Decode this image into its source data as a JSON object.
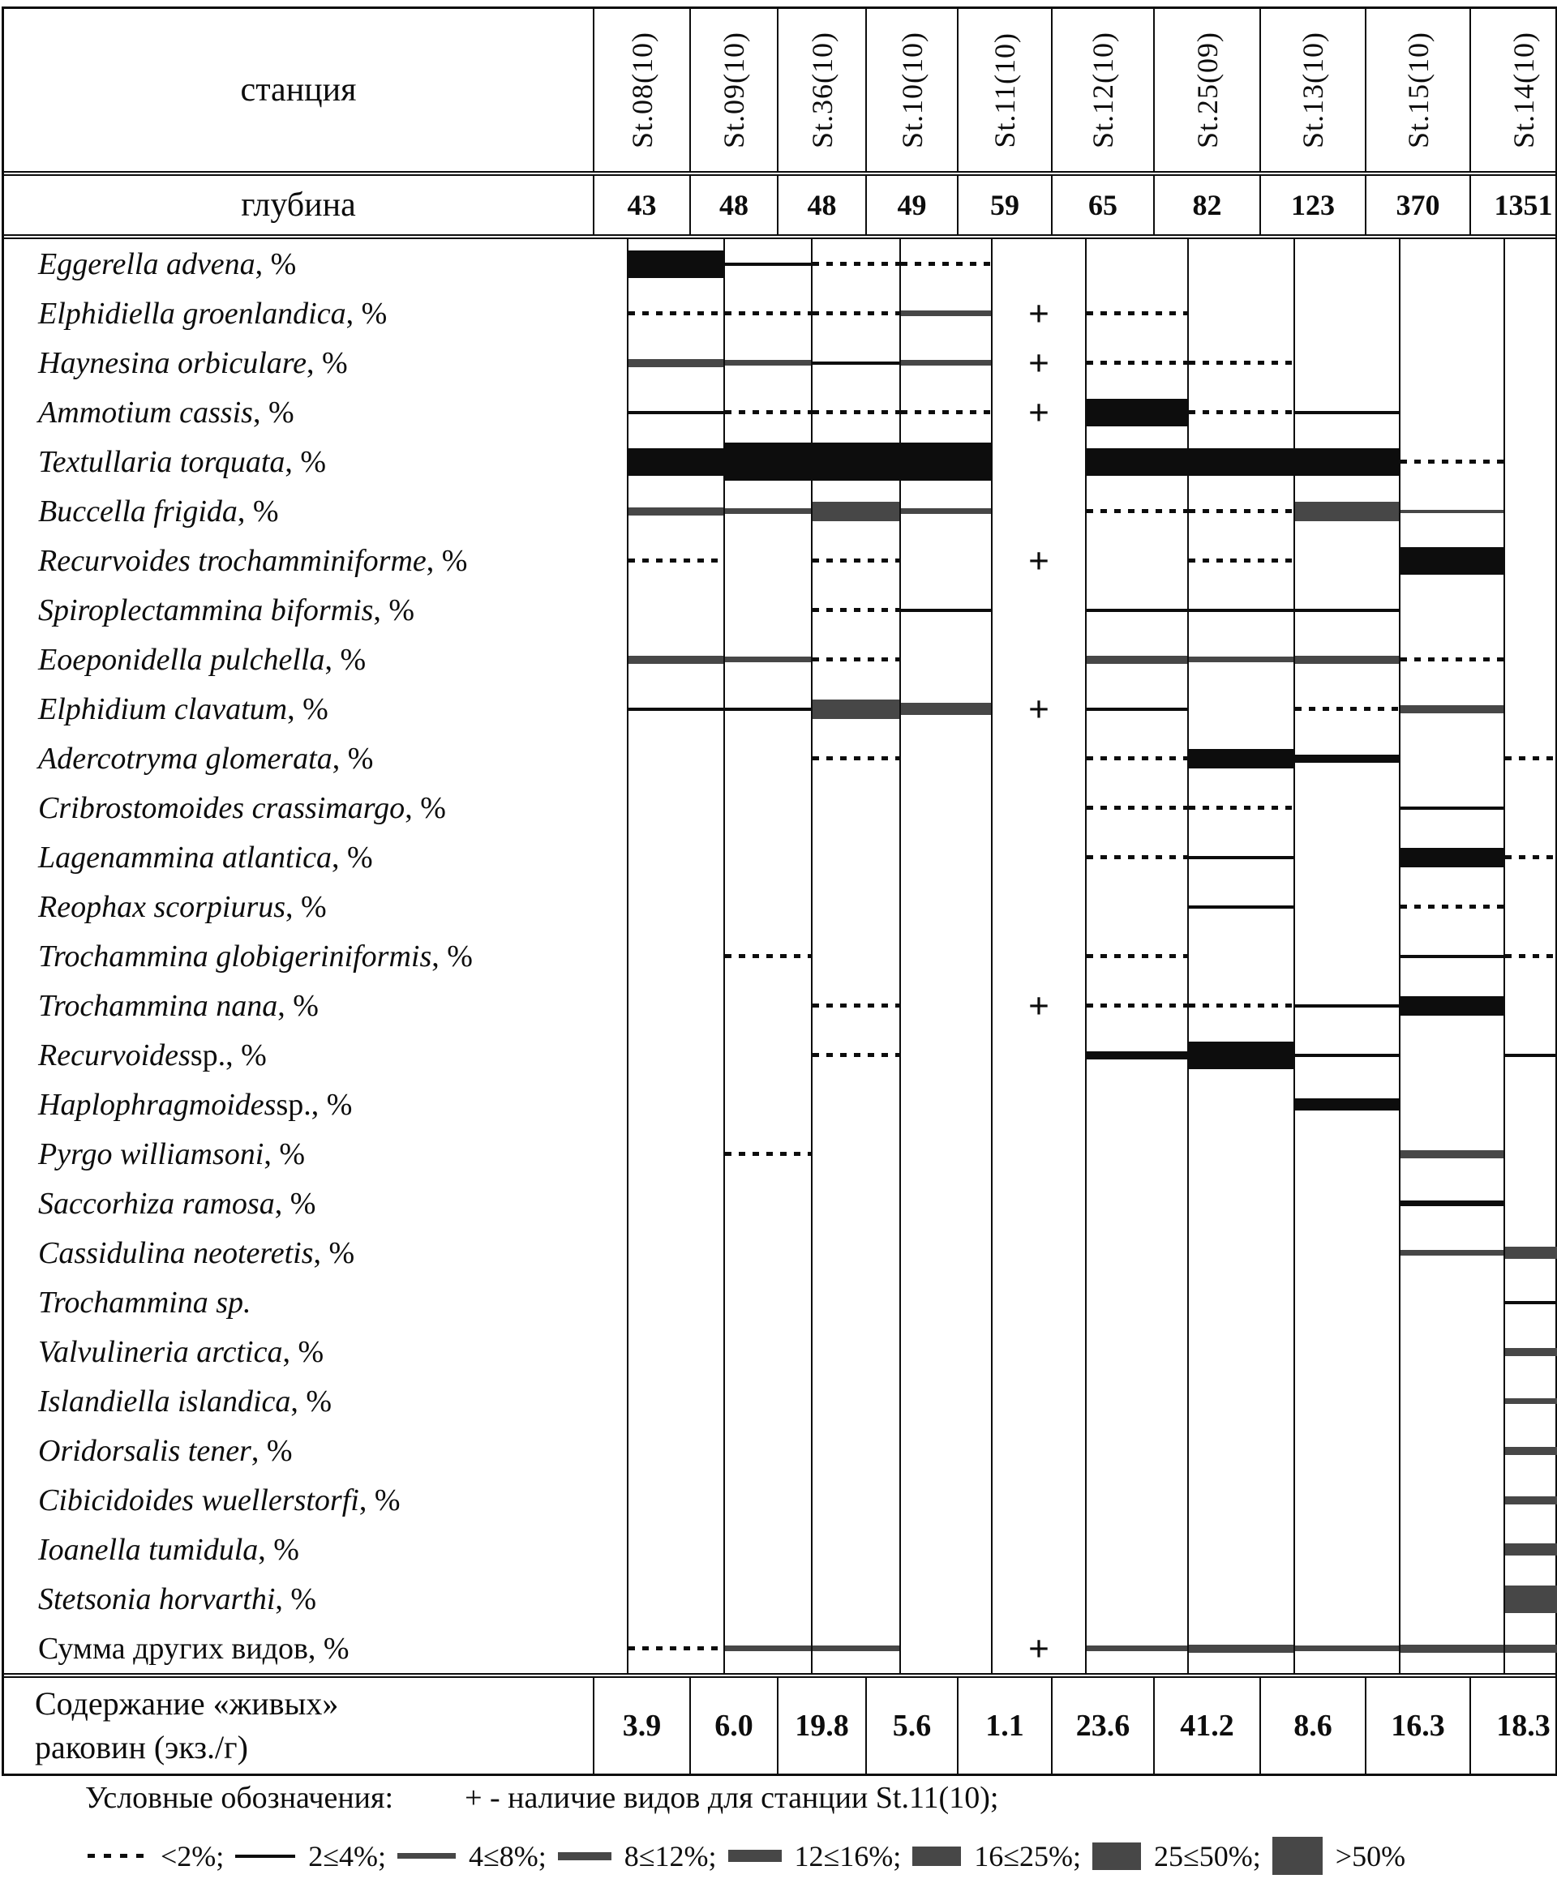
{
  "header": {
    "station_label": "станция",
    "depth_label": "глубина"
  },
  "footer": {
    "content_label_line1": "Содержание «живых»",
    "content_label_line2": "раковин (экз./г)"
  },
  "legend": {
    "title": "Условные обозначения:",
    "plus_note": "+ - наличие видов для станции St.11(10);",
    "items": [
      {
        "code": "d",
        "label": "<2%;"
      },
      {
        "code": "t2",
        "label": "2≤4%;"
      },
      {
        "code": "t4",
        "label": "4≤8%;"
      },
      {
        "code": "t8",
        "label": "8≤12%;"
      },
      {
        "code": "t12",
        "label": "12≤16%;"
      },
      {
        "code": "t16",
        "label": "16≤25%;"
      },
      {
        "code": "t25",
        "label": "25≤50%;"
      },
      {
        "code": "t50",
        "label": ">50%"
      }
    ]
  },
  "colors": {
    "black": "#0d0d0d",
    "gray": "#474747"
  },
  "chart_data": {
    "type": "table",
    "stations": [
      "St.08(10)",
      "St.09(10)",
      "St.36(10)",
      "St.10(10)",
      "St.11(10)",
      "St.12(10)",
      "St.25(09)",
      "St.13(10)",
      "St.15(10)",
      "St.14(10)"
    ],
    "depths": [
      "43",
      "48",
      "48",
      "49",
      "59",
      "65",
      "82",
      "123",
      "370",
      "1351"
    ],
    "live_shells_per_g": [
      "3.9",
      "6.0",
      "19.8",
      "5.6",
      "1.1",
      "23.6",
      "41.2",
      "8.6",
      "16.3",
      "18.3"
    ],
    "abundance_classes": [
      "<2%",
      "2≤4%",
      "4≤8%",
      "8≤12%",
      "12≤16%",
      "16≤25%",
      "25≤50%",
      ">50%"
    ],
    "plus_meaning": "наличие видов для станции St.11(10)",
    "species": [
      {
        "name": "Eggerella advena",
        "suffix": ", %",
        "cells": [
          "t25:b",
          "t2:b",
          "d",
          "d",
          "",
          "",
          "",
          "",
          "",
          ""
        ]
      },
      {
        "name": "Elphidiella groenlandica",
        "suffix": ", %",
        "cells": [
          "d",
          "d",
          "d",
          "t4:g",
          "+",
          "d",
          "",
          "",
          "",
          ""
        ]
      },
      {
        "name": "Haynesina orbiculare",
        "suffix": ", %",
        "cells": [
          "t8:g",
          "t4:g",
          "t2:b",
          "t4:g",
          "+",
          "d",
          "d",
          "",
          "",
          ""
        ]
      },
      {
        "name": "Ammotium cassis",
        "suffix": ", %",
        "cells": [
          "t2:b",
          "d",
          "d",
          "d",
          "+",
          "t25:b",
          "d",
          "t2:b",
          "",
          ""
        ]
      },
      {
        "name": "Textullaria torquata",
        "suffix": ", %",
        "cells": [
          "t25:b",
          "t50:b",
          "t50:b",
          "t50:b",
          "",
          "t25:b",
          "t25:b",
          "t25:b",
          "d",
          ""
        ]
      },
      {
        "name": "Buccella frigida",
        "suffix": ", %",
        "cells": [
          "t8:g",
          "t4:g",
          "t16:g",
          "t4:g",
          "",
          "d",
          "d",
          "t16:g",
          "t2:g",
          ""
        ]
      },
      {
        "name": "Recurvoides trochamminiforme",
        "suffix": ", %",
        "cells": [
          "d",
          "",
          "d",
          "",
          "+",
          "",
          "d",
          "",
          "t25:b",
          ""
        ]
      },
      {
        "name": "Spiroplectammina biformis",
        "suffix": ", %",
        "cells": [
          "",
          "",
          "d",
          "t2:b",
          "",
          "t2:b",
          "t2:b",
          "t2:b",
          "",
          ""
        ]
      },
      {
        "name": "Eoeponidella pulchella",
        "suffix": ", %",
        "cells": [
          "t8:g",
          "t4:g",
          "d",
          "",
          "",
          "t8:g",
          "t4:g",
          "t8:g",
          "d",
          ""
        ]
      },
      {
        "name": "Elphidium clavatum",
        "suffix": ", %",
        "cells": [
          "t2:b",
          "t2:b",
          "t16:g",
          "t12:g",
          "+",
          "t2:b",
          "",
          "d",
          "t8:g",
          ""
        ]
      },
      {
        "name": "Adercotryma glomerata",
        "suffix": ", %",
        "cells": [
          "",
          "",
          "d",
          "",
          "",
          "d",
          "t16:b",
          "t8:b",
          "",
          "d"
        ]
      },
      {
        "name": "Cribrostomoides crassimargo",
        "suffix": ", %",
        "cells": [
          "",
          "",
          "",
          "",
          "",
          "d",
          "d",
          "",
          "t2:b",
          ""
        ]
      },
      {
        "name": "Lagenammina atlantica",
        "suffix": ", %",
        "cells": [
          "",
          "",
          "",
          "",
          "",
          "d",
          "t2:b",
          "",
          "t16:b",
          "d"
        ]
      },
      {
        "name": "Reophax scorpiurus",
        "suffix": ", %",
        "cells": [
          "",
          "",
          "",
          "",
          "",
          "",
          "t2:b",
          "",
          "d",
          ""
        ]
      },
      {
        "name": "Trochammina globigeriniformis",
        "suffix": ", %",
        "cells": [
          "",
          "d",
          "",
          "",
          "",
          "d",
          "",
          "",
          "t2:b",
          "d"
        ]
      },
      {
        "name": "Trochammina nana",
        "suffix": ", %",
        "cells": [
          "",
          "",
          "d",
          "",
          "+",
          "d",
          "d",
          "t2:b",
          "t16:b",
          ""
        ]
      },
      {
        "name": "Recurvoides",
        "suffix": " sp., %",
        "cells": [
          "",
          "",
          "d",
          "",
          "",
          "t8:b",
          "t25:b",
          "t2:b",
          "",
          "t2:b"
        ]
      },
      {
        "name": "Haplophragmoides",
        "suffix": " sp., %",
        "cells": [
          "",
          "",
          "",
          "",
          "",
          "",
          "",
          "t12:b",
          "",
          ""
        ]
      },
      {
        "name": "Pyrgo williamsoni",
        "suffix": ", %",
        "cells": [
          "",
          "d",
          "",
          "",
          "",
          "",
          "",
          "",
          "t8:g",
          ""
        ]
      },
      {
        "name": "Saccorhiza ramosa",
        "suffix": ", %",
        "cells": [
          "",
          "",
          "",
          "",
          "",
          "",
          "",
          "",
          "t4:b",
          ""
        ]
      },
      {
        "name": "Cassidulina neoteretis",
        "suffix": ", %",
        "cells": [
          "",
          "",
          "",
          "",
          "",
          "",
          "",
          "",
          "t4:g",
          "t12:g"
        ]
      },
      {
        "name": "Trochammina sp.",
        "suffix": "",
        "cells": [
          "",
          "",
          "",
          "",
          "",
          "",
          "",
          "",
          "",
          "t2:b"
        ]
      },
      {
        "name": "Valvulineria arctica",
        "suffix": ", %",
        "cells": [
          "",
          "",
          "",
          "",
          "",
          "",
          "",
          "",
          "",
          "t8:g"
        ]
      },
      {
        "name": "Islandiella islandica",
        "suffix": ", %",
        "cells": [
          "",
          "",
          "",
          "",
          "",
          "",
          "",
          "",
          "",
          "t4:g"
        ]
      },
      {
        "name": "Oridorsalis tener",
        "suffix": ", %",
        "cells": [
          "",
          "",
          "",
          "",
          "",
          "",
          "",
          "",
          "",
          "t8:g"
        ]
      },
      {
        "name": "Cibicidoides wuellerstorfi",
        "suffix": ", %",
        "cells": [
          "",
          "",
          "",
          "",
          "",
          "",
          "",
          "",
          "",
          "t8:g"
        ]
      },
      {
        "name": "Ioanella tumidula",
        "suffix": ", %",
        "cells": [
          "",
          "",
          "",
          "",
          "",
          "",
          "",
          "",
          "",
          "t12:g"
        ]
      },
      {
        "name": "Stetsonia horvarthi",
        "suffix": ", %",
        "cells": [
          "",
          "",
          "",
          "",
          "",
          "",
          "",
          "",
          "",
          "t25:g"
        ]
      },
      {
        "name": "Сумма других видов, %",
        "suffix": "",
        "plain": true,
        "cells": [
          "d",
          "t4:g",
          "t4:g",
          "",
          "+",
          "t4:g",
          "t8:g",
          "t4:g",
          "t8:g",
          "t8:g"
        ]
      }
    ]
  }
}
